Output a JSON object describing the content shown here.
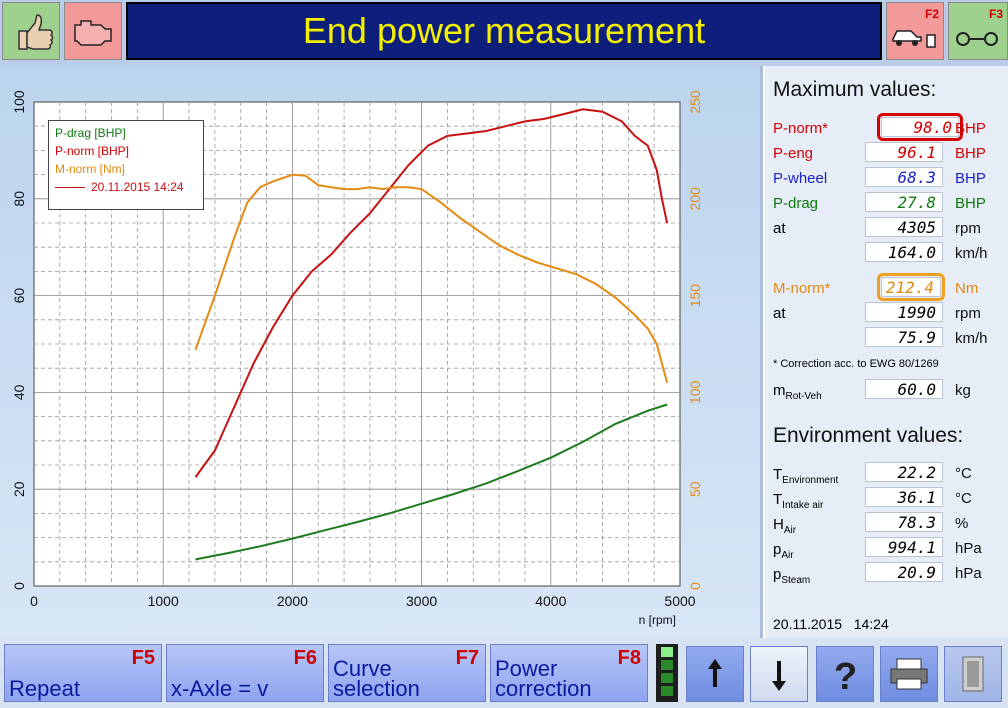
{
  "header": {
    "title": "End power measurement",
    "f2_key": "F2",
    "f3_key": "F3",
    "icons": [
      "thumbs-up-icon",
      "engine-icon",
      "car-on-dyno-icon",
      "roller-icon"
    ]
  },
  "chart_data": {
    "type": "line",
    "xlabel": "n [rpm]",
    "xlim": [
      0,
      5000
    ],
    "x_ticks": [
      "0",
      "1000",
      "2000",
      "3000",
      "4000",
      "5000"
    ],
    "y_left_lim": [
      0,
      100
    ],
    "y_left_ticks": [
      "0",
      "20",
      "40",
      "60",
      "80",
      "100"
    ],
    "y_right_lim": [
      0,
      250
    ],
    "y_right_ticks": [
      "0",
      "50",
      "100",
      "150",
      "200",
      "250"
    ],
    "grid": true,
    "legend_placement": "top-left",
    "legend": {
      "entries": [
        "P-drag [BHP]",
        "P-norm [BHP]",
        "M-norm [Nm]"
      ],
      "run_label": "20.11.2015 14:24"
    },
    "series": [
      {
        "name": "P-drag [BHP]",
        "axis": "left",
        "color": "#1d7a1d",
        "x": [
          1250,
          1500,
          1750,
          2000,
          2250,
          2500,
          2750,
          3000,
          3250,
          3500,
          3750,
          4000,
          4250,
          4500,
          4750,
          4900
        ],
        "y": [
          5.5,
          6.8,
          8.2,
          9.8,
          11.5,
          13.2,
          15.0,
          17.0,
          19.0,
          21.2,
          23.8,
          26.5,
          29.8,
          33.5,
          36.2,
          37.5
        ]
      },
      {
        "name": "P-norm [BHP]",
        "axis": "left",
        "color": "#c81010",
        "x": [
          1250,
          1400,
          1550,
          1700,
          1850,
          2000,
          2150,
          2300,
          2450,
          2600,
          2750,
          2900,
          3050,
          3200,
          3350,
          3500,
          3650,
          3800,
          3950,
          4100,
          4250,
          4400,
          4550,
          4650,
          4750,
          4820,
          4860,
          4900
        ],
        "y": [
          22.5,
          28,
          37,
          46,
          53.5,
          60,
          65,
          68.5,
          73,
          77,
          82,
          87,
          91,
          93,
          93.5,
          94,
          95,
          96,
          96.5,
          97.5,
          98.5,
          98,
          96,
          93,
          91,
          86,
          80,
          75
        ]
      },
      {
        "name": "M-norm [Nm]",
        "axis": "right",
        "color": "#e68a12",
        "x": [
          1250,
          1400,
          1550,
          1650,
          1750,
          1850,
          2000,
          2100,
          2200,
          2300,
          2400,
          2500,
          2600,
          2700,
          2800,
          2900,
          3000,
          3150,
          3300,
          3450,
          3600,
          3750,
          3900,
          4050,
          4200,
          4350,
          4500,
          4650,
          4750,
          4820,
          4860,
          4900
        ],
        "y": [
          122,
          150,
          180,
          198,
          206,
          209,
          212.4,
          212,
          207,
          206,
          205,
          205,
          206,
          205,
          206,
          206,
          205,
          198,
          190,
          183,
          176,
          171,
          167,
          164,
          161,
          156,
          149,
          140,
          133,
          125,
          115,
          105
        ]
      }
    ]
  },
  "right_panel": {
    "max_title": "Maximum values:",
    "rows": [
      {
        "label": "P-norm*",
        "value": "98.0",
        "unit": "BHP"
      },
      {
        "label": "P-eng",
        "value": "96.1",
        "unit": "BHP"
      },
      {
        "label": "P-wheel",
        "value": "68.3",
        "unit": "BHP"
      },
      {
        "label": "P-drag",
        "value": "27.8",
        "unit": "BHP"
      },
      {
        "label": "at",
        "value": "4305",
        "unit": "rpm"
      },
      {
        "label": "",
        "value": "164.0",
        "unit": "km/h"
      },
      {
        "label": "M-norm*",
        "value": "212.4",
        "unit": "Nm"
      },
      {
        "label": "at",
        "value": "1990",
        "unit": "rpm"
      },
      {
        "label": "",
        "value": "75.9",
        "unit": "km/h"
      }
    ],
    "correction_note": "* Correction acc. to EWG 80/1269",
    "mrot": {
      "label": "m",
      "sub": "Rot-Veh",
      "value": "60.0",
      "unit": "kg"
    },
    "env_title": "Environment values:",
    "env": [
      {
        "label": "T",
        "sub": "Environment",
        "value": "22.2",
        "unit": "°C"
      },
      {
        "label": "T",
        "sub": "Intake air",
        "value": "36.1",
        "unit": "°C"
      },
      {
        "label": "H",
        "sub": "Air",
        "value": "78.3",
        "unit": "%"
      },
      {
        "label": "p",
        "sub": "Air",
        "value": "994.1",
        "unit": "hPa"
      },
      {
        "label": "p",
        "sub": "Steam",
        "value": "20.9",
        "unit": "hPa"
      }
    ],
    "timestamp": "20.11.2015   14:24"
  },
  "footer": {
    "buttons": [
      {
        "key": "F5",
        "label": "Repeat"
      },
      {
        "key": "F6",
        "label": "x-Axle = v"
      },
      {
        "key": "F7",
        "label": "Curve selection"
      },
      {
        "key": "F8",
        "label": "Power correction"
      }
    ],
    "icons": [
      "up-arrow-icon",
      "down-arrow-icon",
      "help-icon",
      "printer-icon",
      "exit-icon"
    ]
  },
  "colors": {
    "title_bg": "#0d1f7a",
    "title_text": "#f5f000",
    "p_norm": "#c81010",
    "p_drag": "#1d7a1d",
    "m_norm": "#e68a12",
    "p_wheel": "#1b22c8"
  }
}
